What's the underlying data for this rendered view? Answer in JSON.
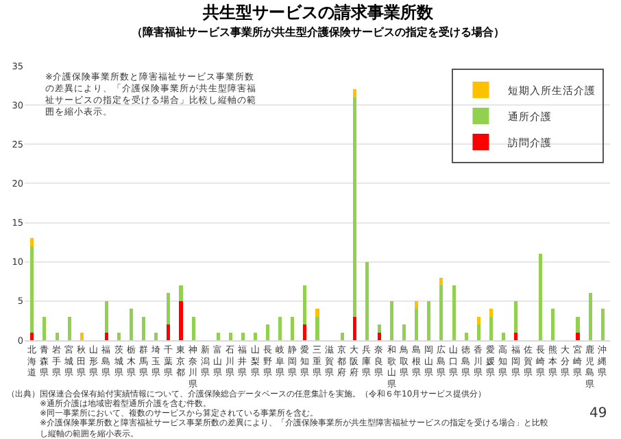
{
  "chart_data": {
    "type": "bar",
    "stacked": true,
    "title": "共生型サービスの請求事業所数",
    "subtitle": "（障害福祉サービス事業所が共生型介護保険サービスの指定を受ける場合）",
    "categories": [
      "北海道",
      "青森県",
      "岩手県",
      "宮城県",
      "秋田県",
      "山形県",
      "福島県",
      "茨城県",
      "栃木県",
      "群馬県",
      "埼玉県",
      "千葉県",
      "東京都",
      "神奈川県",
      "新潟県",
      "富山県",
      "石川県",
      "福井県",
      "山梨県",
      "長野県",
      "岐阜県",
      "静岡県",
      "愛知県",
      "三重県",
      "滋賀県",
      "京都府",
      "大阪府",
      "兵庫県",
      "奈良県",
      "和歌山県",
      "鳥取県",
      "島根県",
      "岡山県",
      "広島県",
      "山口県",
      "徳島県",
      "香川県",
      "愛媛県",
      "高知県",
      "福岡県",
      "佐賀県",
      "長崎県",
      "熊本県",
      "大分県",
      "宮崎県",
      "鹿児島県",
      "沖縄県"
    ],
    "series": [
      {
        "name": "訪問介護",
        "color": "#ff0000",
        "values": [
          1,
          0,
          0,
          0,
          0,
          0,
          1,
          0,
          0,
          0,
          0,
          2,
          5,
          0,
          0,
          0,
          0,
          0,
          0,
          0,
          0,
          0,
          2,
          0,
          0,
          0,
          3,
          0,
          1,
          0,
          0,
          0,
          0,
          0,
          0,
          0,
          0,
          0,
          0,
          1,
          0,
          0,
          0,
          0,
          1,
          0,
          0
        ]
      },
      {
        "name": "通所介護",
        "color": "#92d050",
        "values": [
          11,
          3,
          1,
          3,
          0,
          0,
          4,
          1,
          4,
          3,
          1,
          4,
          2,
          3,
          0,
          1,
          1,
          1,
          1,
          2,
          3,
          3,
          5,
          3,
          0,
          1,
          28,
          10,
          1,
          5,
          2,
          4,
          5,
          7,
          7,
          1,
          2,
          3,
          1,
          4,
          0,
          11,
          4,
          0,
          2,
          6,
          4
        ]
      },
      {
        "name": "短期入所生活介護",
        "color": "#ffc000",
        "values": [
          1,
          0,
          0,
          0,
          1,
          0,
          0,
          0,
          0,
          0,
          0,
          0,
          0,
          0,
          0,
          0,
          0,
          0,
          0,
          0,
          0,
          0,
          0,
          1,
          0,
          0,
          1,
          0,
          0,
          0,
          0,
          1,
          0,
          1,
          0,
          0,
          1,
          1,
          0,
          0,
          0,
          0,
          0,
          0,
          0,
          0,
          0
        ]
      }
    ],
    "ylim": [
      0,
      35
    ],
    "yticks": [
      0,
      5,
      10,
      15,
      20,
      25,
      30,
      35
    ],
    "grid": "y",
    "legend": "top right",
    "annotations": [
      "※介護保険事業所数と障害福祉サービス事業所数の差異により、「介護保険事業所が共生型障害福祉サービスの指定を受ける場合」比較し縦軸の範囲を縮小表示。",
      "（出典）国保連合会保有給付実績情報について、介護保険総合データベースの任意集計を実施。（令和６年10月サービス提供分）",
      "※通所介護は地域密着型通所介護を含む件数。",
      "※同一事業所において、複数のサービスから算定されている事業所を含む。",
      "※介護保険事業所数と障害福祉サービス事業所数の差異により、「介護保険事業所が共生型障害福祉サービスの指定を受ける場合」と比較し縦軸の範囲を縮小表示。",
      "49"
    ]
  }
}
